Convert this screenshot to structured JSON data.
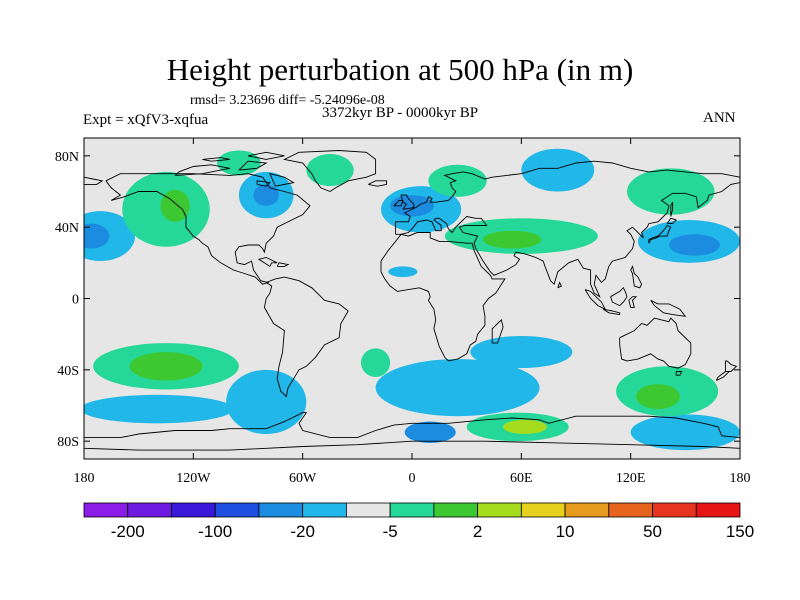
{
  "chart_data": {
    "type": "heatmap",
    "title": "Height perturbation at 500 hPa (in m)",
    "stats": "rmsd= 3.23696 diff= -5.24096e-08",
    "experiment": "Expt = xQfV3-xqfua",
    "period": "3372kyr BP - 0000kyr BP",
    "season": "ANN",
    "projection": "cylindrical equidistant",
    "xlim": [
      -180,
      180
    ],
    "ylim": [
      -90,
      90
    ],
    "x_ticks": [
      {
        "value": -180,
        "label": "180"
      },
      {
        "value": -120,
        "label": "120W"
      },
      {
        "value": -60,
        "label": "60W"
      },
      {
        "value": 0,
        "label": "0"
      },
      {
        "value": 60,
        "label": "60E"
      },
      {
        "value": 120,
        "label": "120E"
      },
      {
        "value": 180,
        "label": "180"
      }
    ],
    "y_ticks": [
      {
        "value": 80,
        "label": "80N"
      },
      {
        "value": 40,
        "label": "40N"
      },
      {
        "value": 0,
        "label": "0"
      },
      {
        "value": -40,
        "label": "40S"
      },
      {
        "value": -80,
        "label": "80S"
      }
    ],
    "colorbar": {
      "colors": [
        "#8c1ce8",
        "#6e1ae0",
        "#3a18d8",
        "#1f4fe0",
        "#1c8ce0",
        "#21b7e8",
        "#e6e6e6",
        "#25d89a",
        "#3dc832",
        "#a6dc1e",
        "#e6d21e",
        "#e69a1e",
        "#e6641e",
        "#e6341e",
        "#e61414"
      ],
      "labels": [
        {
          "boundary": 1,
          "text": "-200"
        },
        {
          "boundary": 3,
          "text": "-100"
        },
        {
          "boundary": 5,
          "text": "-20"
        },
        {
          "boundary": 7,
          "text": "-5"
        },
        {
          "boundary": 9,
          "text": "2"
        },
        {
          "boundary": 11,
          "text": "10"
        },
        {
          "boundary": 13,
          "text": "50"
        },
        {
          "boundary": 15,
          "text": "150"
        }
      ]
    },
    "anomalies": [
      {
        "name": "NE Pacific low",
        "lon": -171,
        "lat": 35,
        "rlon": 19,
        "rlat": 14,
        "level": "neg_small"
      },
      {
        "name": "NE Pacific low core",
        "lon": -176,
        "lat": 35,
        "rlon": 10,
        "rlat": 7,
        "level": "neg_mid"
      },
      {
        "name": "W North America high",
        "lon": -135,
        "lat": 50,
        "rlon": 24,
        "rlat": 21,
        "level": "pos_small"
      },
      {
        "name": "W North America high core",
        "lon": -130,
        "lat": 52,
        "rlon": 8,
        "rlat": 9,
        "level": "pos_mid"
      },
      {
        "name": "Arctic Canada high",
        "lon": -95,
        "lat": 76,
        "rlon": 12,
        "rlat": 7,
        "level": "pos_small"
      },
      {
        "name": "NW Atlantic low",
        "lon": -80,
        "lat": 58,
        "rlon": 15,
        "rlat": 13,
        "level": "neg_small"
      },
      {
        "name": "NW Atlantic low core",
        "lon": -80,
        "lat": 58,
        "rlon": 7,
        "rlat": 6,
        "level": "neg_mid"
      },
      {
        "name": "Labrador Sea high",
        "lon": -45,
        "lat": 72,
        "rlon": 13,
        "rlat": 9,
        "level": "pos_small"
      },
      {
        "name": "E Atlantic low",
        "lon": 5,
        "lat": 50,
        "rlon": 22,
        "rlat": 13,
        "level": "neg_small"
      },
      {
        "name": "E Atlantic low core",
        "lon": 0,
        "lat": 52,
        "rlon": 12,
        "rlat": 6,
        "level": "neg_mid"
      },
      {
        "name": "North Africa low",
        "lon": -5,
        "lat": 15,
        "rlon": 8,
        "rlat": 3,
        "level": "neg_small"
      },
      {
        "name": "Scandinavia high",
        "lon": 25,
        "lat": 66,
        "rlon": 16,
        "rlat": 9,
        "level": "pos_small"
      },
      {
        "name": "Eurasia high",
        "lon": 60,
        "lat": 35,
        "rlon": 42,
        "rlat": 10,
        "level": "pos_small"
      },
      {
        "name": "Eurasia high core",
        "lon": 55,
        "lat": 33,
        "rlon": 16,
        "rlat": 5,
        "level": "pos_mid"
      },
      {
        "name": "Siberia low",
        "lon": 80,
        "lat": 72,
        "rlon": 20,
        "rlat": 12,
        "level": "neg_small"
      },
      {
        "name": "NE Asia high",
        "lon": 142,
        "lat": 60,
        "rlon": 24,
        "rlat": 13,
        "level": "pos_small"
      },
      {
        "name": "NW Pacific low",
        "lon": 152,
        "lat": 32,
        "rlon": 28,
        "rlat": 12,
        "level": "neg_small"
      },
      {
        "name": "NW Pacific low core",
        "lon": 155,
        "lat": 30,
        "rlon": 14,
        "rlat": 6,
        "level": "neg_mid"
      },
      {
        "name": "S Pacific high",
        "lon": -135,
        "lat": -38,
        "rlon": 40,
        "rlat": 13,
        "level": "pos_small"
      },
      {
        "name": "S Pacific high core",
        "lon": -135,
        "lat": -38,
        "rlon": 20,
        "rlat": 8,
        "level": "pos_mid"
      },
      {
        "name": "Southern Ocean low band",
        "lon": -140,
        "lat": -62,
        "rlon": 42,
        "rlat": 8,
        "level": "neg_small"
      },
      {
        "name": "Drake Passage low",
        "lon": -80,
        "lat": -58,
        "rlon": 22,
        "rlat": 18,
        "level": "neg_small"
      },
      {
        "name": "S Atlantic high",
        "lon": -20,
        "lat": -36,
        "rlon": 8,
        "rlat": 8,
        "level": "pos_small"
      },
      {
        "name": "S Indian low band",
        "lon": 25,
        "lat": -50,
        "rlon": 45,
        "rlat": 16,
        "level": "neg_small"
      },
      {
        "name": "S Indian low arm",
        "lon": 60,
        "lat": -30,
        "rlon": 28,
        "rlat": 9,
        "level": "neg_small"
      },
      {
        "name": "Antarctic coast low",
        "lon": 10,
        "lat": -75,
        "rlon": 14,
        "rlat": 6,
        "level": "neg_mid"
      },
      {
        "name": "Antarctic high",
        "lon": 58,
        "lat": -72,
        "rlon": 28,
        "rlat": 8,
        "level": "pos_small"
      },
      {
        "name": "Antarctic high core",
        "lon": 62,
        "lat": -72,
        "rlon": 12,
        "rlat": 4,
        "level": "pos_strong"
      },
      {
        "name": "SE Indian low",
        "lon": 150,
        "lat": -75,
        "rlon": 30,
        "rlat": 10,
        "level": "neg_small"
      },
      {
        "name": "S Australia high",
        "lon": 140,
        "lat": -52,
        "rlon": 28,
        "rlat": 14,
        "level": "pos_small"
      },
      {
        "name": "S Australia high core",
        "lon": 135,
        "lat": -55,
        "rlon": 12,
        "rlat": 7,
        "level": "pos_mid"
      }
    ]
  }
}
